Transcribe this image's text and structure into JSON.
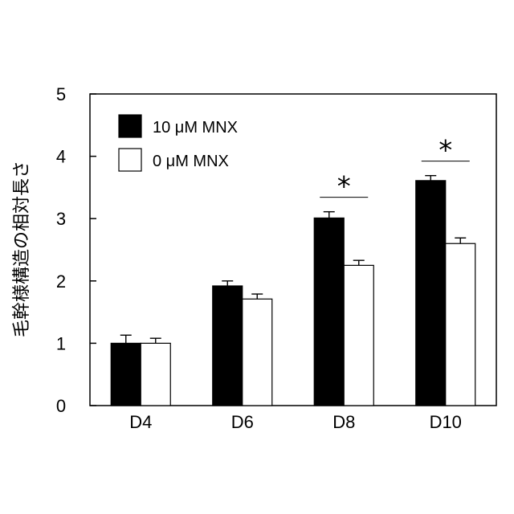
{
  "chart_data": {
    "type": "bar",
    "ylabel": "毛幹様構造の相対長さ",
    "xlabel": "",
    "ylim": [
      0,
      5
    ],
    "yticks": [
      "0",
      "1",
      "2",
      "3",
      "4",
      "5"
    ],
    "categories": [
      "D4",
      "D6",
      "D8",
      "D10"
    ],
    "series": [
      {
        "name": "10 μM MNX",
        "color": "#000000",
        "values": [
          1.0,
          1.92,
          3.01,
          3.61
        ],
        "errors": [
          0.13,
          0.08,
          0.1,
          0.08
        ]
      },
      {
        "name": "0 μM MNX",
        "color": "#ffffff",
        "values": [
          1.0,
          1.71,
          2.25,
          2.6
        ],
        "errors": [
          0.08,
          0.08,
          0.08,
          0.09
        ]
      }
    ],
    "significance": [
      {
        "category": "D8",
        "label": "*"
      },
      {
        "category": "D10",
        "label": "*"
      }
    ],
    "legend_position": "top-left"
  }
}
